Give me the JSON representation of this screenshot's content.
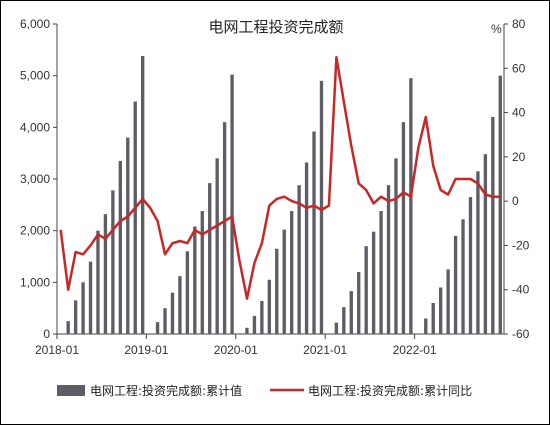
{
  "chart_data": {
    "type": "bar+line",
    "title": "电网工程投资完成额",
    "y2_unit_label": "%",
    "ylim": [
      0,
      6000
    ],
    "y_ticks": [
      "0",
      "1,000",
      "2,000",
      "3,000",
      "4,000",
      "5,000",
      "6,000"
    ],
    "y2lim": [
      -60,
      80
    ],
    "y2_ticks": [
      "-60",
      "-40",
      "-20",
      "0",
      "20",
      "40",
      "60",
      "80"
    ],
    "x_tick_labels": [
      "2018-01",
      "2019-01",
      "2020-01",
      "2021-01",
      "2022-01"
    ],
    "categories": [
      "2018-01",
      "2018-02",
      "2018-03",
      "2018-04",
      "2018-05",
      "2018-06",
      "2018-07",
      "2018-08",
      "2018-09",
      "2018-10",
      "2018-11",
      "2018-12",
      "2019-01",
      "2019-02",
      "2019-03",
      "2019-04",
      "2019-05",
      "2019-06",
      "2019-07",
      "2019-08",
      "2019-09",
      "2019-10",
      "2019-11",
      "2019-12",
      "2020-01",
      "2020-02",
      "2020-03",
      "2020-04",
      "2020-05",
      "2020-06",
      "2020-07",
      "2020-08",
      "2020-09",
      "2020-10",
      "2020-11",
      "2020-12",
      "2021-01",
      "2021-02",
      "2021-03",
      "2021-04",
      "2021-05",
      "2021-06",
      "2021-07",
      "2021-08",
      "2021-09",
      "2021-10",
      "2021-11",
      "2021-12",
      "2022-01",
      "2022-02",
      "2022-03",
      "2022-04",
      "2022-05",
      "2022-06",
      "2022-07",
      "2022-08",
      "2022-09",
      "2022-10",
      "2022-11",
      "2022-12"
    ],
    "series": [
      {
        "name": "电网工程:投资完成额:累计值",
        "type": "bar",
        "color": "#5d5d66",
        "values": [
          null,
          250,
          650,
          1000,
          1400,
          2000,
          2320,
          2780,
          3350,
          3800,
          4500,
          5380,
          null,
          230,
          500,
          800,
          1120,
          1600,
          2080,
          2380,
          2920,
          3400,
          4100,
          5020,
          null,
          120,
          350,
          640,
          1050,
          1650,
          2020,
          2380,
          2880,
          3320,
          3920,
          4900,
          null,
          220,
          520,
          830,
          1200,
          1700,
          1980,
          2380,
          2880,
          3400,
          4100,
          4950,
          null,
          300,
          600,
          900,
          1250,
          1900,
          2220,
          2650,
          3150,
          3480,
          4200,
          5000
        ]
      },
      {
        "name": "电网工程:投资完成额:累计同比",
        "type": "line",
        "color": "#c62828",
        "values": [
          -13,
          -40,
          -23,
          -24,
          -20,
          -15,
          -17,
          -13,
          -9,
          -7,
          -3,
          1,
          -3,
          -9,
          -24,
          -19,
          -18,
          -19,
          -13,
          -15,
          -13,
          -11,
          -9,
          -7,
          -27,
          -44,
          -28,
          -19,
          -2,
          1,
          2,
          0,
          -1,
          -3,
          -2,
          -4,
          -2,
          65,
          45,
          25,
          8,
          5,
          -1,
          2,
          0,
          1,
          4,
          2,
          24,
          38,
          16,
          5,
          3,
          10,
          10,
          10,
          8,
          3,
          2,
          2
        ]
      }
    ],
    "grid": false,
    "legend_position": "bottom"
  }
}
